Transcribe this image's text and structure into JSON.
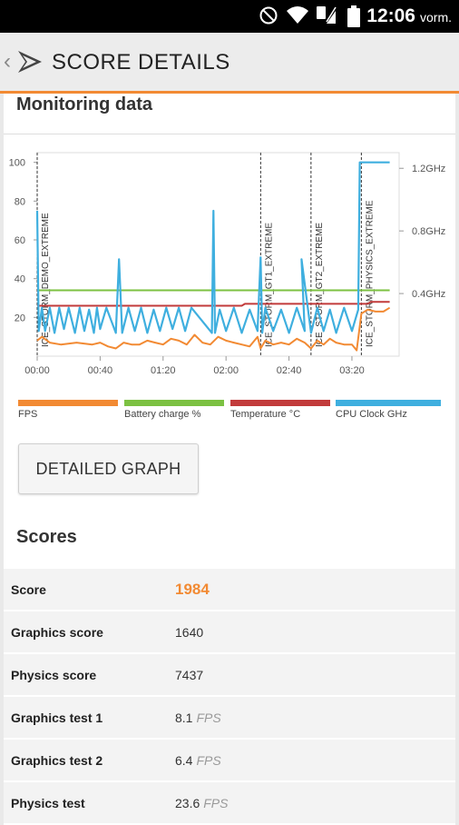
{
  "status_bar": {
    "time": "12:06",
    "ampm": "vorm.",
    "icons": [
      "do-not-disturb-icon",
      "wifi-icon",
      "sim-icon",
      "battery-icon"
    ]
  },
  "header": {
    "title": "SCORE DETAILS"
  },
  "monitoring": {
    "title": "Monitoring data",
    "chart_data": {
      "type": "line",
      "x_ticks": [
        "00:00",
        "00:40",
        "01:20",
        "02:00",
        "02:40",
        "03:20"
      ],
      "y_left_ticks": [
        20,
        40,
        60,
        80,
        100
      ],
      "y_left_range": [
        0,
        105
      ],
      "y_right_ticks": [
        "0.4GHz",
        "0.8GHz",
        "1.2GHz"
      ],
      "x_range_minutes": [
        0,
        230
      ],
      "test_markers": [
        {
          "label": "ICE_STORM_DEMO_EXTREME",
          "x": 0
        },
        {
          "label": "ICE_STORM_GT1_EXTREME",
          "x": 142
        },
        {
          "label": "ICE_STORM_GT2_EXTREME",
          "x": 174
        },
        {
          "label": "ICE_STORM_PHYSICS_EXTREME",
          "x": 206
        }
      ],
      "series": [
        {
          "name": "FPS",
          "color": "#f28a33",
          "x": [
            0,
            3,
            8,
            15,
            25,
            35,
            40,
            45,
            50,
            55,
            60,
            65,
            70,
            75,
            80,
            85,
            90,
            95,
            100,
            105,
            110,
            115,
            120,
            125,
            130,
            135,
            140,
            142,
            145,
            150,
            155,
            160,
            165,
            170,
            174,
            178,
            182,
            186,
            190,
            195,
            200,
            203,
            206,
            210,
            215,
            220,
            224
          ],
          "y": [
            8,
            10,
            7,
            6,
            7,
            6,
            7,
            5,
            4,
            7,
            6,
            6,
            8,
            7,
            6,
            9,
            8,
            6,
            11,
            7,
            6,
            10,
            8,
            7,
            6,
            5,
            10,
            4,
            8,
            6,
            7,
            6,
            9,
            7,
            4,
            8,
            6,
            9,
            7,
            6,
            6,
            3,
            22,
            24,
            23,
            23,
            25
          ]
        },
        {
          "name": "Battery charge %",
          "color": "#7cc142",
          "x": [
            0,
            224
          ],
          "y": [
            34,
            34
          ]
        },
        {
          "name": "Temperature °C",
          "color": "#c23b3b",
          "x": [
            0,
            130,
            132,
            210,
            212,
            224
          ],
          "y": [
            26,
            26,
            27,
            27,
            28,
            28
          ]
        },
        {
          "name": "CPU Clock GHz",
          "color": "#3fafdf",
          "x": [
            0,
            1,
            3,
            5,
            8,
            11,
            14,
            17,
            20,
            24,
            27,
            30,
            33,
            36,
            38,
            40,
            44,
            50,
            52,
            54,
            58,
            62,
            66,
            70,
            74,
            78,
            82,
            86,
            90,
            94,
            98,
            111,
            112,
            113,
            116,
            120,
            125,
            130,
            135,
            140,
            142,
            143,
            145,
            150,
            155,
            160,
            165,
            170,
            168,
            174,
            178,
            182,
            186,
            190,
            195,
            200,
            204,
            205,
            206,
            207,
            224
          ],
          "y": [
            75,
            13,
            25,
            13,
            25,
            12,
            25,
            14,
            25,
            12,
            25,
            13,
            24,
            12,
            25,
            14,
            25,
            12,
            50,
            12,
            25,
            13,
            25,
            12,
            24,
            13,
            25,
            14,
            25,
            13,
            25,
            12,
            75,
            12,
            24,
            13,
            25,
            12,
            24,
            13,
            51,
            12,
            25,
            13,
            24,
            12,
            25,
            13,
            50,
            12,
            25,
            13,
            24,
            12,
            25,
            13,
            24,
            100,
            100,
            100,
            100
          ]
        }
      ],
      "legend": [
        {
          "name": "FPS",
          "color": "#f28a33"
        },
        {
          "name": "Battery charge %",
          "color": "#7cc142"
        },
        {
          "name": "Temperature °C",
          "color": "#c23b3b"
        },
        {
          "name": "CPU Clock GHz",
          "color": "#3fafdf"
        }
      ]
    },
    "detailed_graph_label": "DETAILED GRAPH"
  },
  "scores": {
    "title": "Scores",
    "rows": [
      {
        "label": "Score",
        "value": "1984",
        "unit": ""
      },
      {
        "label": "Graphics score",
        "value": "1640",
        "unit": ""
      },
      {
        "label": "Physics score",
        "value": "7437",
        "unit": ""
      },
      {
        "label": "Graphics test 1",
        "value": "8.1",
        "unit": "FPS"
      },
      {
        "label": "Graphics test 2",
        "value": "6.4",
        "unit": "FPS"
      },
      {
        "label": "Physics test",
        "value": "23.6",
        "unit": "FPS"
      }
    ]
  }
}
